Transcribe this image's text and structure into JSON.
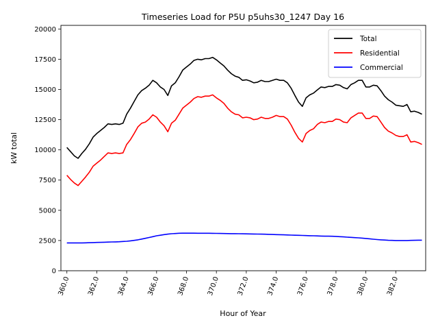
{
  "chart_data": {
    "type": "line",
    "title": "Timeseries Load for P5U p5uhs30_1247  Day 16",
    "xlabel": "Hour of Year",
    "ylabel": "kW total",
    "xlim": [
      359.6,
      384.0
    ],
    "ylim": [
      0,
      20300
    ],
    "x_ticks": [
      360,
      362,
      364,
      366,
      368,
      370,
      372,
      374,
      376,
      378,
      380,
      382
    ],
    "x_tick_labels": [
      "360.0",
      "362.0",
      "364.0",
      "366.0",
      "368.0",
      "370.0",
      "372.0",
      "374.0",
      "376.0",
      "378.0",
      "380.0",
      "382.0"
    ],
    "y_ticks": [
      0,
      2500,
      5000,
      7500,
      10000,
      12500,
      15000,
      17500,
      20000
    ],
    "y_tick_labels": [
      "0",
      "2500",
      "5000",
      "7500",
      "10000",
      "12500",
      "15000",
      "17500",
      "20000"
    ],
    "legend_position": "top-right",
    "x": [
      360.0,
      360.25,
      360.5,
      360.75,
      361.0,
      361.25,
      361.5,
      361.75,
      362.0,
      362.25,
      362.5,
      362.75,
      363.0,
      363.25,
      363.5,
      363.75,
      364.0,
      364.25,
      364.5,
      364.75,
      365.0,
      365.25,
      365.5,
      365.75,
      366.0,
      366.25,
      366.5,
      366.75,
      367.0,
      367.25,
      367.5,
      367.75,
      368.0,
      368.25,
      368.5,
      368.75,
      369.0,
      369.25,
      369.5,
      369.75,
      370.0,
      370.25,
      370.5,
      370.75,
      371.0,
      371.25,
      371.5,
      371.75,
      372.0,
      372.25,
      372.5,
      372.75,
      373.0,
      373.25,
      373.5,
      373.75,
      374.0,
      374.25,
      374.5,
      374.75,
      375.0,
      375.25,
      375.5,
      375.75,
      376.0,
      376.25,
      376.5,
      376.75,
      377.0,
      377.25,
      377.5,
      377.75,
      378.0,
      378.25,
      378.5,
      378.75,
      379.0,
      379.25,
      379.5,
      379.75,
      380.0,
      380.25,
      380.5,
      380.75,
      381.0,
      381.25,
      381.5,
      381.75,
      382.0,
      382.25,
      382.5,
      382.75,
      383.0,
      383.25,
      383.5,
      383.75
    ],
    "series": [
      {
        "name": "Total",
        "color": "#000000",
        "values": [
          10200,
          9850,
          9500,
          9300,
          9700,
          10050,
          10500,
          11050,
          11350,
          11600,
          11850,
          12150,
          12100,
          12150,
          12100,
          12200,
          12950,
          13450,
          14000,
          14550,
          14900,
          15100,
          15350,
          15750,
          15550,
          15200,
          15000,
          14500,
          15300,
          15550,
          16050,
          16600,
          16850,
          17100,
          17400,
          17500,
          17450,
          17550,
          17550,
          17650,
          17450,
          17200,
          16950,
          16600,
          16300,
          16100,
          16000,
          15750,
          15800,
          15700,
          15550,
          15600,
          15750,
          15650,
          15650,
          15750,
          15850,
          15750,
          15750,
          15550,
          15100,
          14500,
          13950,
          13600,
          14300,
          14550,
          14700,
          14950,
          15200,
          15150,
          15250,
          15250,
          15400,
          15350,
          15150,
          15050,
          15400,
          15550,
          15750,
          15750,
          15200,
          15200,
          15350,
          15300,
          14900,
          14450,
          14150,
          13950,
          13700,
          13650,
          13600,
          13750,
          13150,
          13200,
          13100,
          12950
        ]
      },
      {
        "name": "Residential",
        "color": "#ff0000",
        "values": [
          7900,
          7550,
          7250,
          7050,
          7400,
          7750,
          8150,
          8650,
          8900,
          9150,
          9450,
          9750,
          9700,
          9750,
          9700,
          9750,
          10450,
          10850,
          11350,
          11900,
          12200,
          12300,
          12550,
          12900,
          12700,
          12300,
          12000,
          11500,
          12200,
          12450,
          12950,
          13450,
          13700,
          13950,
          14250,
          14400,
          14350,
          14450,
          14450,
          14550,
          14300,
          14100,
          13850,
          13450,
          13150,
          12950,
          12900,
          12650,
          12700,
          12650,
          12500,
          12550,
          12700,
          12600,
          12600,
          12700,
          12850,
          12750,
          12750,
          12550,
          12050,
          11450,
          10950,
          10650,
          11350,
          11600,
          11750,
          12100,
          12300,
          12250,
          12350,
          12350,
          12550,
          12500,
          12300,
          12250,
          12650,
          12850,
          13050,
          13050,
          12600,
          12600,
          12800,
          12750,
          12300,
          11850,
          11550,
          11400,
          11200,
          11100,
          11100,
          11250,
          10650,
          10700,
          10600,
          10450
        ]
      },
      {
        "name": "Commercial",
        "color": "#0000ff",
        "values": [
          2300,
          2300,
          2300,
          2300,
          2300,
          2310,
          2320,
          2330,
          2340,
          2350,
          2360,
          2370,
          2380,
          2390,
          2400,
          2420,
          2440,
          2470,
          2510,
          2560,
          2620,
          2680,
          2750,
          2820,
          2890,
          2940,
          2990,
          3030,
          3060,
          3080,
          3100,
          3110,
          3110,
          3110,
          3105,
          3100,
          3100,
          3100,
          3100,
          3095,
          3090,
          3085,
          3080,
          3075,
          3070,
          3065,
          3060,
          3055,
          3050,
          3045,
          3040,
          3035,
          3030,
          3020,
          3010,
          3000,
          2990,
          2980,
          2970,
          2960,
          2950,
          2940,
          2930,
          2920,
          2910,
          2900,
          2890,
          2880,
          2870,
          2860,
          2860,
          2850,
          2840,
          2820,
          2800,
          2780,
          2760,
          2740,
          2720,
          2700,
          2670,
          2640,
          2610,
          2580,
          2560,
          2540,
          2520,
          2510,
          2500,
          2500,
          2500,
          2500,
          2510,
          2520,
          2530,
          2530
        ]
      }
    ]
  }
}
